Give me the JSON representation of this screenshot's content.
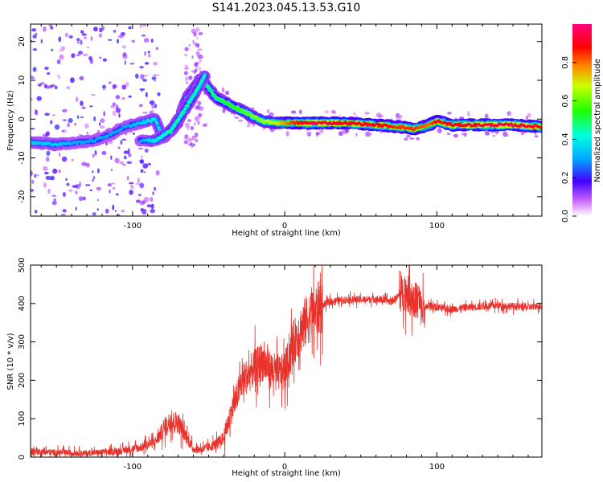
{
  "figure": {
    "title": "S141.2023.045.13.53.G10"
  },
  "chart_data": [
    {
      "type": "heatmap",
      "title": "S141.2023.045.13.53.G10",
      "xlabel": "Height of straight line (km)",
      "ylabel": "Frequency (Hz)",
      "xlim": [
        -167,
        169
      ],
      "ylim": [
        -25,
        24.5
      ],
      "x_ticks": [
        -100,
        0,
        100
      ],
      "x_tick_labels": [
        "-100",
        "0",
        "100"
      ],
      "y_ticks": [
        -20,
        -10,
        0,
        10,
        20
      ],
      "y_tick_labels": [
        "-20",
        "-10",
        "0",
        "10",
        "20"
      ],
      "colorbar": {
        "label": "Normalized spectral amplitude",
        "range": [
          0,
          1
        ],
        "ticks": [
          0,
          0.2,
          0.4,
          0.6,
          0.8
        ],
        "tick_labels": [
          "0.0",
          "0.2",
          "0.4",
          "0.6",
          "0.8"
        ],
        "colormap": "rainbow (white-violet-blue-cyan-green-yellow-red-magenta)"
      },
      "ridge": [
        {
          "x": -167,
          "y": -6,
          "amp": 0.35
        },
        {
          "x": -150,
          "y": -6.5,
          "amp": 0.35
        },
        {
          "x": -135,
          "y": -6,
          "amp": 0.3
        },
        {
          "x": -125,
          "y": -5.5,
          "amp": 0.3
        },
        {
          "x": -115,
          "y": -4,
          "amp": 0.3
        },
        {
          "x": -105,
          "y": -2,
          "amp": 0.3
        },
        {
          "x": -95,
          "y": -1,
          "amp": 0.35
        },
        {
          "x": -85,
          "y": 0,
          "amp": 0.4
        },
        {
          "x": -80,
          "y": -5,
          "amp": 0.4
        },
        {
          "x": -70,
          "y": -1,
          "amp": 0.45
        },
        {
          "x": -65,
          "y": 5,
          "amp": 0.45
        },
        {
          "x": -55,
          "y": 10.5,
          "amp": 0.45
        },
        {
          "x": -45,
          "y": 5.5,
          "amp": 0.5
        },
        {
          "x": -35,
          "y": 3.5,
          "amp": 0.55
        },
        {
          "x": -25,
          "y": 1.5,
          "amp": 0.6
        },
        {
          "x": -15,
          "y": -0.5,
          "amp": 0.65
        },
        {
          "x": -5,
          "y": -1,
          "amp": 0.7
        },
        {
          "x": 5,
          "y": -1,
          "amp": 0.85
        },
        {
          "x": 20,
          "y": -1,
          "amp": 0.95
        },
        {
          "x": 40,
          "y": -1,
          "amp": 0.9
        },
        {
          "x": 60,
          "y": -1.5,
          "amp": 0.9
        },
        {
          "x": 75,
          "y": -2,
          "amp": 0.85
        },
        {
          "x": 85,
          "y": -2.5,
          "amp": 0.85
        },
        {
          "x": 95,
          "y": -1.5,
          "amp": 0.8
        },
        {
          "x": 100,
          "y": -0.5,
          "amp": 0.9
        },
        {
          "x": 110,
          "y": -1.5,
          "amp": 0.9
        },
        {
          "x": 130,
          "y": -1.5,
          "amp": 0.95
        },
        {
          "x": 150,
          "y": -1.5,
          "amp": 0.95
        },
        {
          "x": 169,
          "y": -2,
          "amp": 0.9
        }
      ],
      "secondary_ridge": [
        {
          "x": -95,
          "y": -5.5,
          "amp": 0.3
        },
        {
          "x": -85,
          "y": -5.5,
          "amp": 0.4
        },
        {
          "x": -75,
          "y": -3,
          "amp": 0.45
        },
        {
          "x": -68,
          "y": 1,
          "amp": 0.45
        },
        {
          "x": -60,
          "y": 6,
          "amp": 0.45
        },
        {
          "x": -52,
          "y": 11.5,
          "amp": 0.45
        }
      ]
    },
    {
      "type": "line",
      "xlabel": "Height of straight line (km)",
      "ylabel": "SNR (10 * v/v)",
      "xlim": [
        -167,
        169
      ],
      "ylim": [
        0,
        500
      ],
      "x_ticks": [
        -100,
        0,
        100
      ],
      "x_tick_labels": [
        "-100",
        "0",
        "100"
      ],
      "y_ticks": [
        0,
        100,
        200,
        300,
        400,
        500
      ],
      "y_tick_labels": [
        "0",
        "100",
        "200",
        "300",
        "400",
        "500"
      ],
      "color": "#e8322c",
      "x": [
        -167,
        -150,
        -130,
        -110,
        -95,
        -85,
        -80,
        -75,
        -70,
        -65,
        -60,
        -55,
        -50,
        -45,
        -40,
        -35,
        -32,
        -28,
        -25,
        -20,
        -15,
        -10,
        -5,
        0,
        5,
        10,
        15,
        20,
        25,
        30,
        40,
        50,
        60,
        70,
        75,
        78,
        80,
        82,
        85,
        88,
        90,
        95,
        100,
        110,
        120,
        140,
        160,
        169
      ],
      "values": [
        15,
        12,
        10,
        15,
        25,
        40,
        70,
        95,
        90,
        55,
        20,
        20,
        25,
        35,
        50,
        120,
        150,
        200,
        210,
        230,
        250,
        230,
        220,
        220,
        290,
        330,
        360,
        380,
        395,
        405,
        410,
        410,
        412,
        405,
        420,
        430,
        430,
        420,
        405,
        415,
        380,
        395,
        390,
        385,
        390,
        395,
        390,
        395
      ]
    }
  ]
}
